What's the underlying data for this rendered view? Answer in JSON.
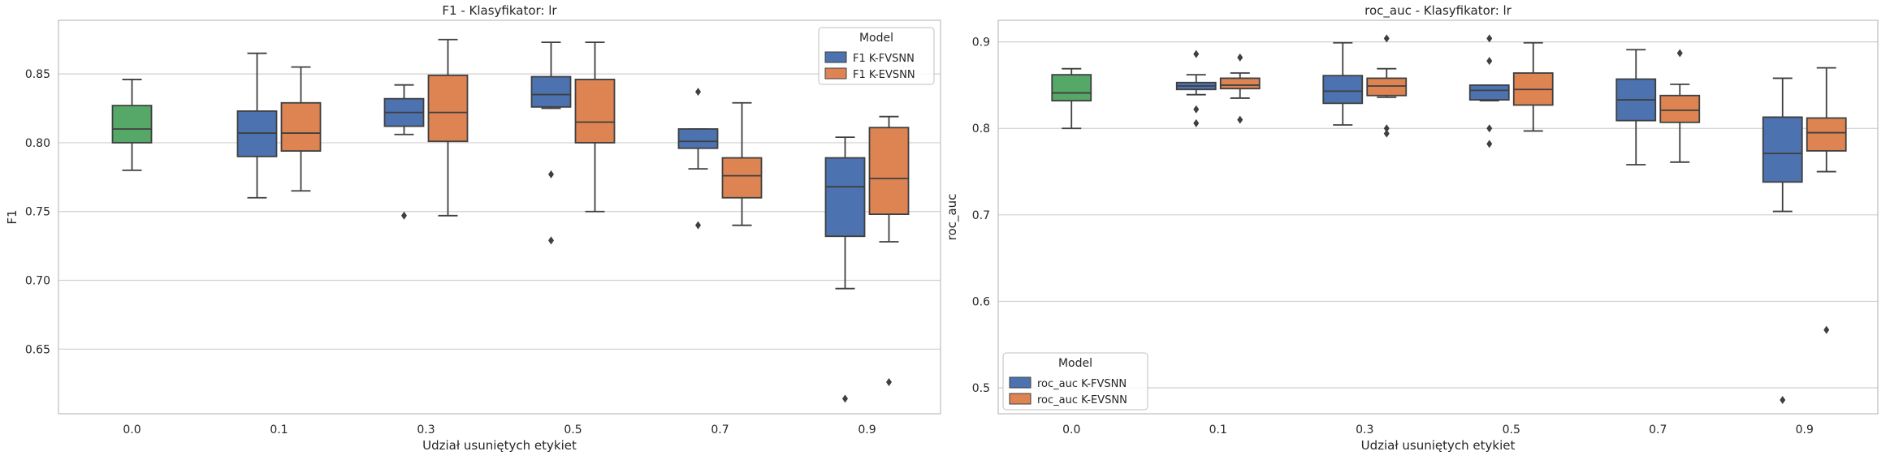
{
  "colors": {
    "base": "#55a868",
    "fvsnn": "#4c72b0",
    "evsnn": "#dd8452",
    "grid": "#d0d0d0",
    "frame": "#bfbfbf",
    "line": "#3f3f3f"
  },
  "chart_data": [
    {
      "type": "box",
      "title": "F1 - Klasyfikator: lr",
      "xlabel": "Udział usuniętych etykiet",
      "ylabel": "F1",
      "categories": [
        "0.0",
        "0.1",
        "0.3",
        "0.5",
        "0.7",
        "0.9"
      ],
      "ylim": [
        0.603,
        0.889
      ],
      "yticks": [
        0.65,
        0.7,
        0.75,
        0.8,
        0.85
      ],
      "ytick_labels": [
        "0.65",
        "0.70",
        "0.75",
        "0.80",
        "0.85"
      ],
      "grid": true,
      "legend": {
        "title": "Model",
        "position": "top-right",
        "entries": [
          {
            "label": "F1 K-FVSNN",
            "color": "fvsnn"
          },
          {
            "label": "F1 K-EVSNN",
            "color": "evsnn"
          }
        ]
      },
      "boxes": [
        {
          "category": "0.0",
          "series": "base",
          "whislo": 0.78,
          "q1": 0.8,
          "med": 0.81,
          "q3": 0.827,
          "whishi": 0.846,
          "fliers": []
        },
        {
          "category": "0.1",
          "series": "fvsnn",
          "whislo": 0.76,
          "q1": 0.79,
          "med": 0.807,
          "q3": 0.823,
          "whishi": 0.865,
          "fliers": []
        },
        {
          "category": "0.1",
          "series": "evsnn",
          "whislo": 0.765,
          "q1": 0.794,
          "med": 0.807,
          "q3": 0.829,
          "whishi": 0.855,
          "fliers": []
        },
        {
          "category": "0.3",
          "series": "fvsnn",
          "whislo": 0.806,
          "q1": 0.812,
          "med": 0.822,
          "q3": 0.832,
          "whishi": 0.842,
          "fliers": [
            0.747
          ]
        },
        {
          "category": "0.3",
          "series": "evsnn",
          "whislo": 0.747,
          "q1": 0.801,
          "med": 0.822,
          "q3": 0.849,
          "whishi": 0.875,
          "fliers": []
        },
        {
          "category": "0.5",
          "series": "fvsnn",
          "whislo": 0.825,
          "q1": 0.826,
          "med": 0.835,
          "q3": 0.848,
          "whishi": 0.873,
          "fliers": [
            0.777,
            0.729
          ]
        },
        {
          "category": "0.5",
          "series": "evsnn",
          "whislo": 0.75,
          "q1": 0.8,
          "med": 0.815,
          "q3": 0.846,
          "whishi": 0.873,
          "fliers": []
        },
        {
          "category": "0.7",
          "series": "fvsnn",
          "whislo": 0.781,
          "q1": 0.796,
          "med": 0.801,
          "q3": 0.81,
          "whishi": 0.81,
          "fliers": [
            0.837,
            0.74
          ]
        },
        {
          "category": "0.7",
          "series": "evsnn",
          "whislo": 0.74,
          "q1": 0.76,
          "med": 0.776,
          "q3": 0.789,
          "whishi": 0.829,
          "fliers": []
        },
        {
          "category": "0.9",
          "series": "fvsnn",
          "whislo": 0.694,
          "q1": 0.732,
          "med": 0.768,
          "q3": 0.789,
          "whishi": 0.804,
          "fliers": [
            0.614
          ]
        },
        {
          "category": "0.9",
          "series": "evsnn",
          "whislo": 0.728,
          "q1": 0.748,
          "med": 0.774,
          "q3": 0.811,
          "whishi": 0.819,
          "fliers": [
            0.626
          ]
        }
      ]
    },
    {
      "type": "box",
      "title": "roc_auc - Klasyfikator: lr",
      "xlabel": "Udział usuniętych etykiet",
      "ylabel": "roc_auc",
      "categories": [
        "0.0",
        "0.1",
        "0.3",
        "0.5",
        "0.7",
        "0.9"
      ],
      "ylim": [
        0.47,
        0.925
      ],
      "yticks": [
        0.5,
        0.6,
        0.7,
        0.8,
        0.9
      ],
      "ytick_labels": [
        "0.5",
        "0.6",
        "0.7",
        "0.8",
        "0.9"
      ],
      "grid": true,
      "legend": {
        "title": "Model",
        "position": "bottom-left",
        "entries": [
          {
            "label": "roc_auc K-FVSNN",
            "color": "fvsnn"
          },
          {
            "label": "roc_auc K-EVSNN",
            "color": "evsnn"
          }
        ]
      },
      "boxes": [
        {
          "category": "0.0",
          "series": "base",
          "whislo": 0.8,
          "q1": 0.832,
          "med": 0.841,
          "q3": 0.862,
          "whishi": 0.869,
          "fliers": []
        },
        {
          "category": "0.1",
          "series": "fvsnn",
          "whislo": 0.839,
          "q1": 0.845,
          "med": 0.849,
          "q3": 0.853,
          "whishi": 0.862,
          "fliers": [
            0.886,
            0.822,
            0.806
          ]
        },
        {
          "category": "0.1",
          "series": "evsnn",
          "whislo": 0.835,
          "q1": 0.846,
          "med": 0.85,
          "q3": 0.858,
          "whishi": 0.864,
          "fliers": [
            0.882,
            0.81
          ]
        },
        {
          "category": "0.3",
          "series": "fvsnn",
          "whislo": 0.804,
          "q1": 0.829,
          "med": 0.843,
          "q3": 0.861,
          "whishi": 0.899,
          "fliers": []
        },
        {
          "category": "0.3",
          "series": "evsnn",
          "whislo": 0.836,
          "q1": 0.838,
          "med": 0.849,
          "q3": 0.858,
          "whishi": 0.869,
          "fliers": [
            0.904,
            0.8,
            0.794
          ]
        },
        {
          "category": "0.5",
          "series": "fvsnn",
          "whislo": 0.832,
          "q1": 0.833,
          "med": 0.844,
          "q3": 0.85,
          "whishi": 0.85,
          "fliers": [
            0.904,
            0.878,
            0.8,
            0.782
          ]
        },
        {
          "category": "0.5",
          "series": "evsnn",
          "whislo": 0.797,
          "q1": 0.827,
          "med": 0.845,
          "q3": 0.864,
          "whishi": 0.899,
          "fliers": []
        },
        {
          "category": "0.7",
          "series": "fvsnn",
          "whislo": 0.758,
          "q1": 0.809,
          "med": 0.833,
          "q3": 0.857,
          "whishi": 0.891,
          "fliers": []
        },
        {
          "category": "0.7",
          "series": "evsnn",
          "whislo": 0.761,
          "q1": 0.807,
          "med": 0.821,
          "q3": 0.838,
          "whishi": 0.851,
          "fliers": [
            0.887
          ]
        },
        {
          "category": "0.9",
          "series": "fvsnn",
          "whislo": 0.704,
          "q1": 0.738,
          "med": 0.771,
          "q3": 0.813,
          "whishi": 0.858,
          "fliers": [
            0.486
          ]
        },
        {
          "category": "0.9",
          "series": "evsnn",
          "whislo": 0.75,
          "q1": 0.774,
          "med": 0.795,
          "q3": 0.812,
          "whishi": 0.87,
          "fliers": [
            0.567
          ]
        }
      ]
    }
  ]
}
